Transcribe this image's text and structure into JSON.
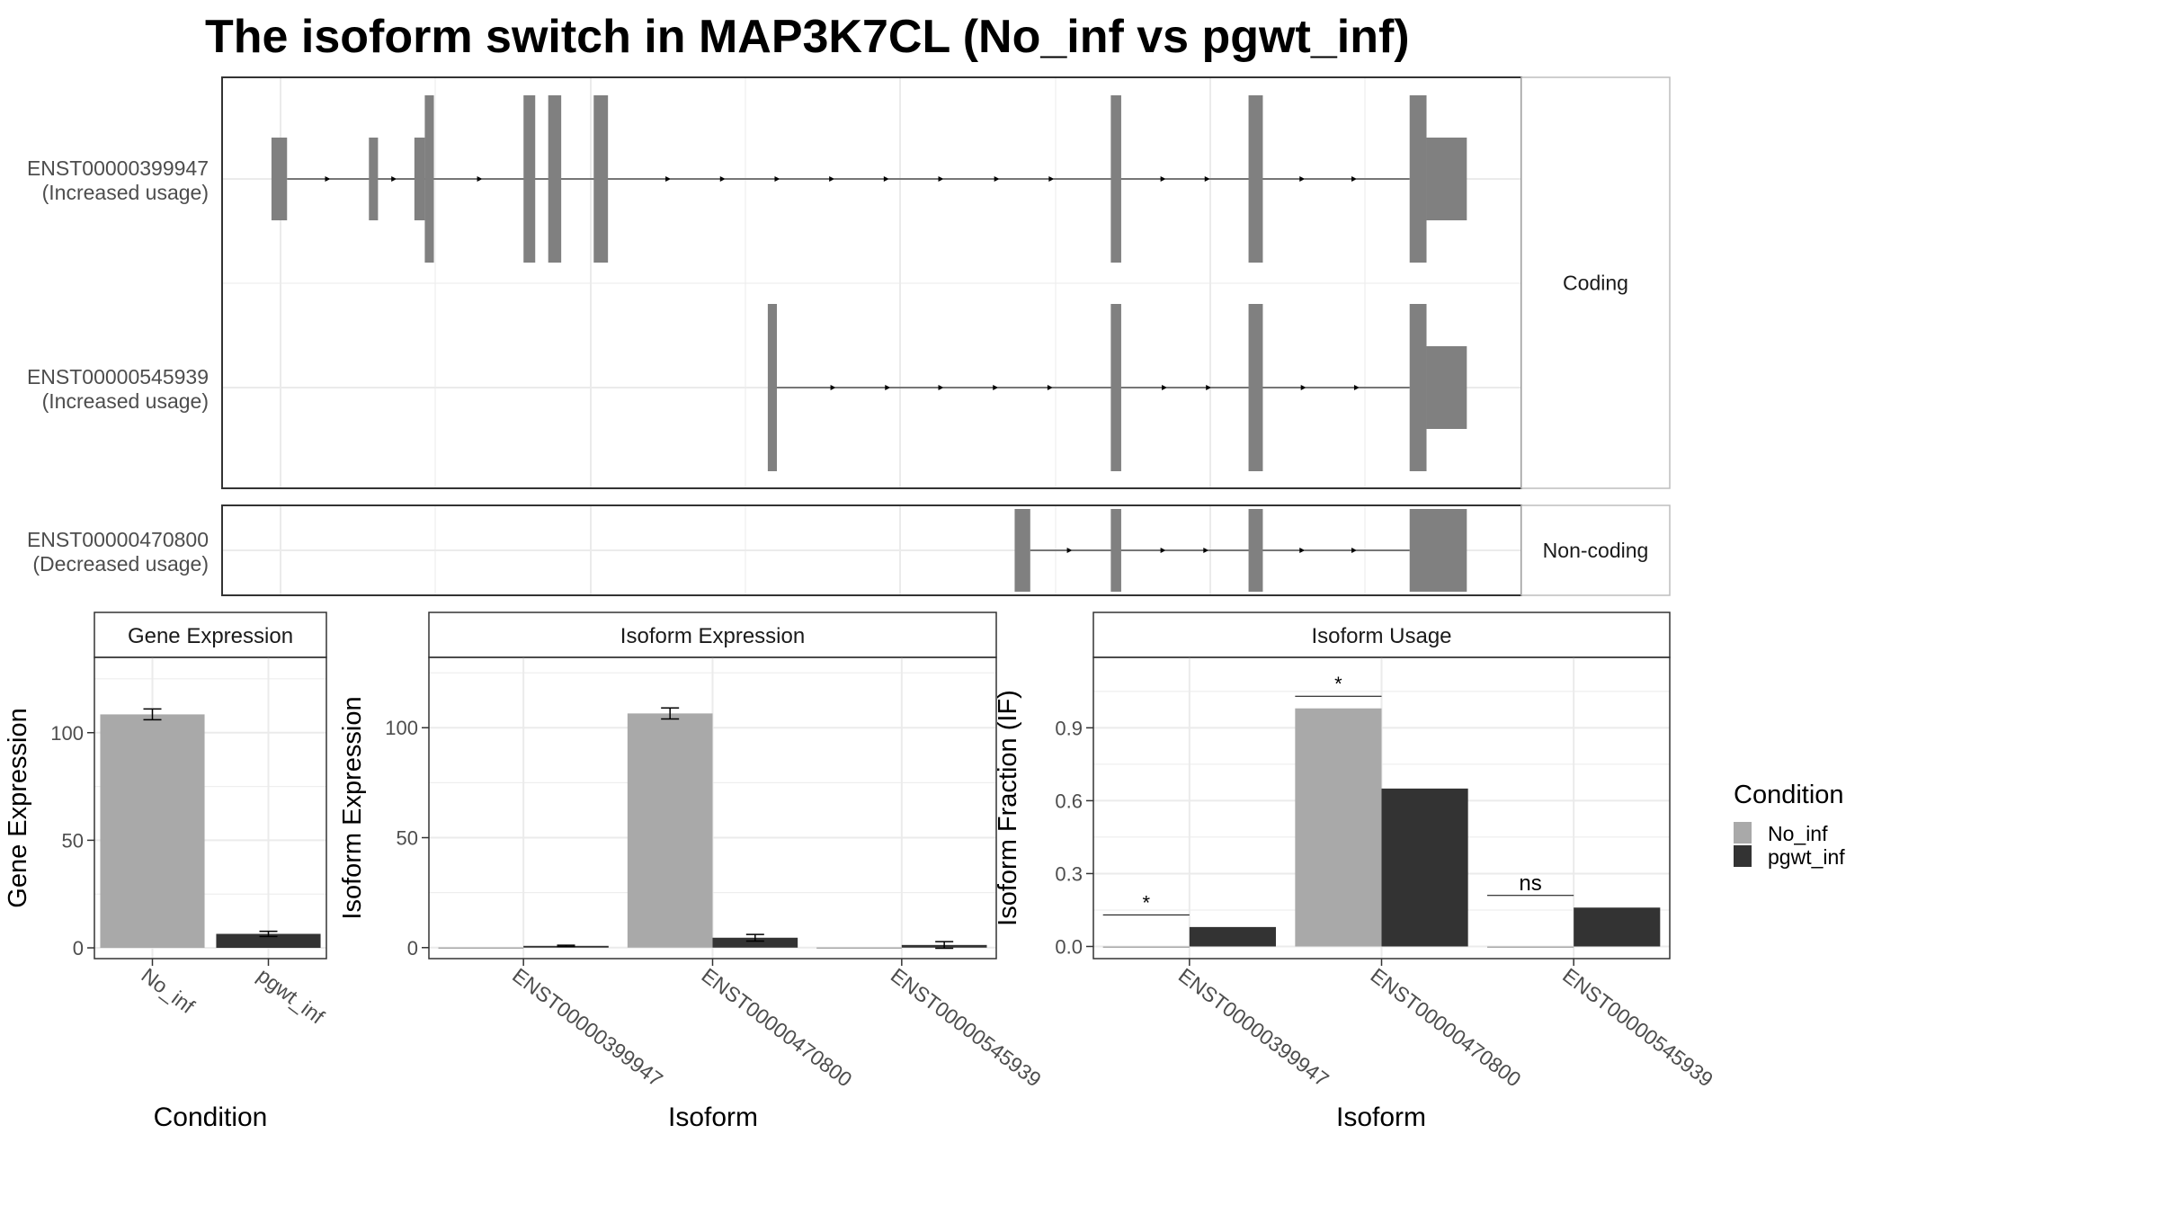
{
  "title": "The isoform switch in MAP3K7CL (No_inf vs pgwt_inf)",
  "colors": {
    "No_inf": "#a9a9a9",
    "pgwt_inf": "#333333",
    "exon": "#808080",
    "grid": "#ebebeb",
    "frame": "#333333",
    "strip": "#bdbdbd"
  },
  "legend": {
    "title": "Condition",
    "items": [
      "No_inf",
      "pgwt_inf"
    ]
  },
  "chart_data": [
    {
      "type": "gene-structure",
      "xlim": [
        0,
        100
      ],
      "facets": [
        {
          "label": "Coding",
          "tracks": [
            {
              "label": "ENST00000399947",
              "sublabel": "(Increased usage)",
              "exons": [
                [
                  3.8,
                  5.0,
                  "u"
                ],
                [
                  11.3,
                  12.0,
                  "u"
                ],
                [
                  14.8,
                  15.6,
                  "u"
                ],
                [
                  15.6,
                  16.3,
                  "c"
                ],
                [
                  23.2,
                  24.1,
                  "c"
                ],
                [
                  25.1,
                  26.1,
                  "c"
                ],
                [
                  28.6,
                  29.7,
                  "c"
                ],
                [
                  68.4,
                  69.2,
                  "c"
                ],
                [
                  79.0,
                  80.1,
                  "c"
                ],
                [
                  91.4,
                  92.7,
                  "c"
                ],
                [
                  92.7,
                  95.8,
                  "u"
                ]
              ],
              "intron_start": 5.0,
              "intron_end": 91.4,
              "arrows": [
                8.2,
                13.3,
                19.9,
                34.4,
                38.6,
                42.8,
                47.0,
                51.2,
                55.4,
                59.7,
                63.9,
                72.5,
                75.9,
                83.2,
                87.2
              ]
            },
            {
              "label": "ENST00000545939",
              "sublabel": "(Increased usage)",
              "exons": [
                [
                  42.0,
                  42.7,
                  "c"
                ],
                [
                  68.4,
                  69.2,
                  "c"
                ],
                [
                  79.0,
                  80.1,
                  "c"
                ],
                [
                  91.4,
                  92.7,
                  "c"
                ],
                [
                  92.7,
                  95.8,
                  "u"
                ]
              ],
              "intron_start": 42.7,
              "intron_end": 91.4,
              "arrows": [
                47.1,
                51.3,
                55.4,
                59.6,
                63.8,
                72.6,
                76.0,
                83.3,
                87.4
              ]
            }
          ]
        },
        {
          "label": "Non-coding",
          "tracks": [
            {
              "label": "ENST00000470800",
              "sublabel": "(Decreased usage)",
              "exons": [
                [
                  61.0,
                  62.2,
                  "n"
                ],
                [
                  68.4,
                  69.2,
                  "n"
                ],
                [
                  79.0,
                  80.1,
                  "n"
                ],
                [
                  91.4,
                  95.8,
                  "n"
                ]
              ],
              "intron_start": 62.2,
              "intron_end": 91.4,
              "arrows": [
                65.3,
                72.5,
                75.8,
                83.2,
                87.2
              ]
            }
          ]
        }
      ]
    },
    {
      "type": "bar",
      "strip": "Gene Expression",
      "xlabel": "Condition",
      "ylabel": "Gene Expression",
      "categories": [
        "No_inf",
        "pgwt_inf"
      ],
      "series": [
        {
          "name": "No_inf",
          "values": [
            108.5,
            null
          ],
          "err": [
            2.5,
            null
          ]
        },
        {
          "name": "pgwt_inf",
          "values": [
            null,
            6.5
          ],
          "err": [
            null,
            1.2
          ]
        }
      ],
      "ylim": [
        -5,
        135
      ],
      "yticks": [
        0,
        50,
        100
      ]
    },
    {
      "type": "bar",
      "strip": "Isoform Expression",
      "xlabel": "Isoform",
      "ylabel": "Isoform Expression",
      "categories": [
        "ENST00000399947",
        "ENST00000470800",
        "ENST00000545939"
      ],
      "series": [
        {
          "name": "No_inf",
          "values": [
            0.1,
            106.5,
            0.1
          ],
          "err": [
            0.0,
            2.5,
            0.0
          ]
        },
        {
          "name": "pgwt_inf",
          "values": [
            0.8,
            4.5,
            1.2
          ],
          "err": [
            0.3,
            1.5,
            1.5
          ]
        }
      ],
      "ylim": [
        -5,
        132
      ],
      "yticks": [
        0,
        50,
        100
      ]
    },
    {
      "type": "bar",
      "strip": "Isoform Usage",
      "xlabel": "Isoform",
      "ylabel": "Isoform Fraction (IF)",
      "categories": [
        "ENST00000399947",
        "ENST00000470800",
        "ENST00000545939"
      ],
      "series": [
        {
          "name": "No_inf",
          "values": [
            0.0,
            0.98,
            0.0
          ]
        },
        {
          "name": "pgwt_inf",
          "values": [
            0.08,
            0.65,
            0.16
          ]
        }
      ],
      "ylim": [
        -0.05,
        1.19
      ],
      "yticks": [
        0.0,
        0.3,
        0.6,
        0.9
      ],
      "annotations": [
        {
          "category": 0,
          "label": "*",
          "y": 0.13
        },
        {
          "category": 1,
          "label": "*",
          "y": 1.03
        },
        {
          "category": 2,
          "label": "ns",
          "y": 0.21
        }
      ]
    }
  ]
}
